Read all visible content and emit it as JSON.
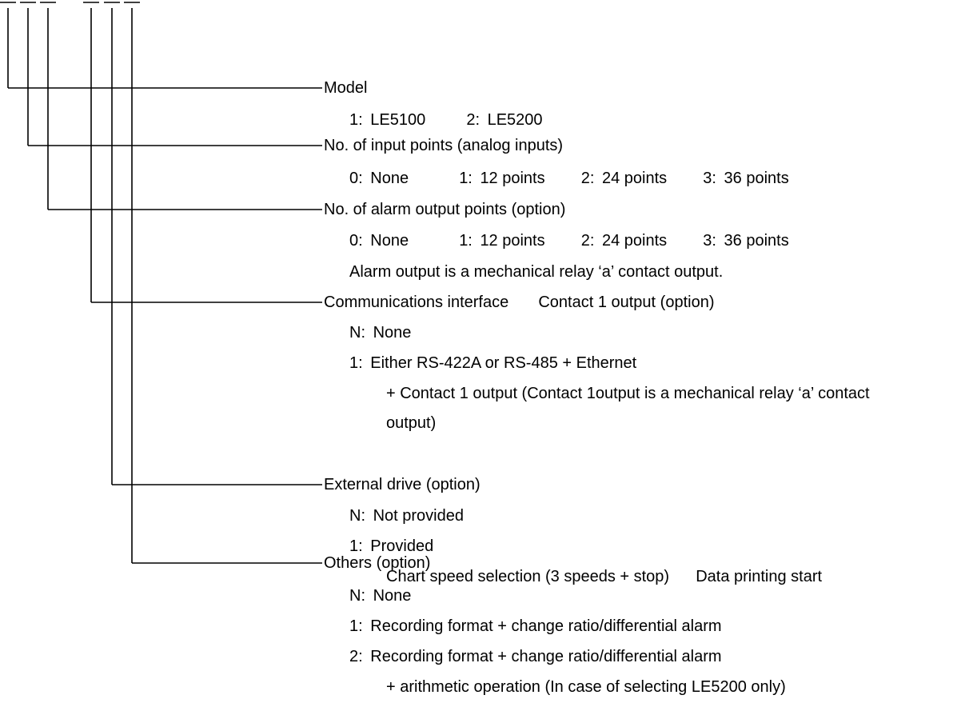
{
  "colors": {
    "line": "#000000",
    "text": "#000000",
    "background": "#ffffff"
  },
  "fields": [
    {
      "heading": "Model",
      "lines": [
        {
          "pairs": [
            {
              "code": "1:",
              "text": "LE5100"
            },
            {
              "code": "2:",
              "text": "LE5200"
            }
          ]
        }
      ]
    },
    {
      "heading": "No. of input points (analog inputs)",
      "lines": [
        {
          "pairs": [
            {
              "code": "0:",
              "text": "None"
            },
            {
              "code": "1:",
              "text": "12 points"
            },
            {
              "code": "2:",
              "text": "24 points"
            },
            {
              "code": "3:",
              "text": "36 points"
            }
          ]
        }
      ]
    },
    {
      "heading": "No. of alarm output points (option)",
      "lines": [
        {
          "pairs": [
            {
              "code": "0:",
              "text": "None"
            },
            {
              "code": "1:",
              "text": "12 points"
            },
            {
              "code": "2:",
              "text": "24 points"
            },
            {
              "code": "3:",
              "text": "36 points"
            }
          ]
        },
        {
          "text": "Alarm output is a mechanical relay ‘a’ contact output."
        }
      ]
    },
    {
      "heading_a": "Communications interface",
      "heading_b": "Contact 1 output (option)",
      "options": [
        {
          "code": "N:",
          "text": "None"
        },
        {
          "code": "1:",
          "text": "Either RS-422A or RS-485 + Ethernet"
        }
      ],
      "cont1": "+ Contact 1 output  (Contact 1output is a mechanical relay ‘a’ contact",
      "cont2": "output)"
    },
    {
      "heading": "External drive (option)",
      "options": [
        {
          "code": "N:",
          "text": "Not provided"
        },
        {
          "code": "1:",
          "text": "Provided"
        }
      ],
      "note_a": "Chart speed selection (3 speeds + stop)",
      "note_b": "Data printing start"
    },
    {
      "heading": "Others (option)",
      "options": [
        {
          "code": "N:",
          "text": "None"
        },
        {
          "code": "1:",
          "text": "Recording format + change ratio/differential alarm"
        },
        {
          "code": "2:",
          "text": "Recording format + change ratio/differential alarm"
        }
      ],
      "cont": "+ arithmetic operation (In case of selecting LE5200 only)"
    }
  ]
}
